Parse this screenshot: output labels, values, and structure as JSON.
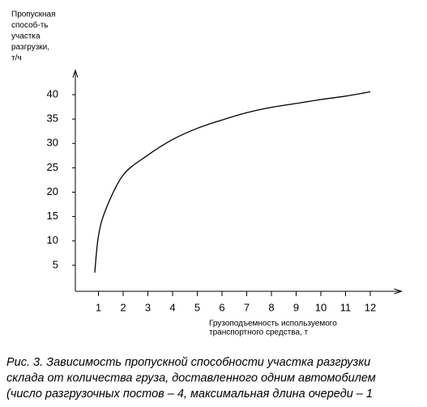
{
  "chart_data": {
    "type": "line",
    "y_label": [
      "Пропускная",
      "способ-ть",
      "участка",
      "разгрузки,",
      "т/ч"
    ],
    "x_label": [
      "Грузоподъемность используемого",
      "транспортного средства, т"
    ],
    "caption": [
      "Рис. 3. Зависимость пропускной способности участка разгрузки",
      "склада от количества груза, доставленного одним автомобилем",
      "(число разгрузочных постов – 4, максимальная длина очереди – 1"
    ],
    "x": [
      0.85,
      1,
      1.3,
      2,
      3,
      4,
      5,
      6,
      7,
      8,
      9,
      10,
      11,
      12
    ],
    "values": [
      3.5,
      11,
      16.5,
      23.5,
      27.6,
      30.8,
      33.1,
      34.8,
      36.3,
      37.4,
      38.2,
      39,
      39.7,
      40.6
    ],
    "color": "#000000",
    "xlim": [
      0,
      13
    ],
    "ylim": [
      0,
      45
    ],
    "xticks": [
      1,
      2,
      3,
      4,
      5,
      6,
      7,
      8,
      9,
      10,
      11,
      12
    ],
    "yticks": [
      5,
      10,
      15,
      20,
      25,
      30,
      35,
      40
    ]
  }
}
